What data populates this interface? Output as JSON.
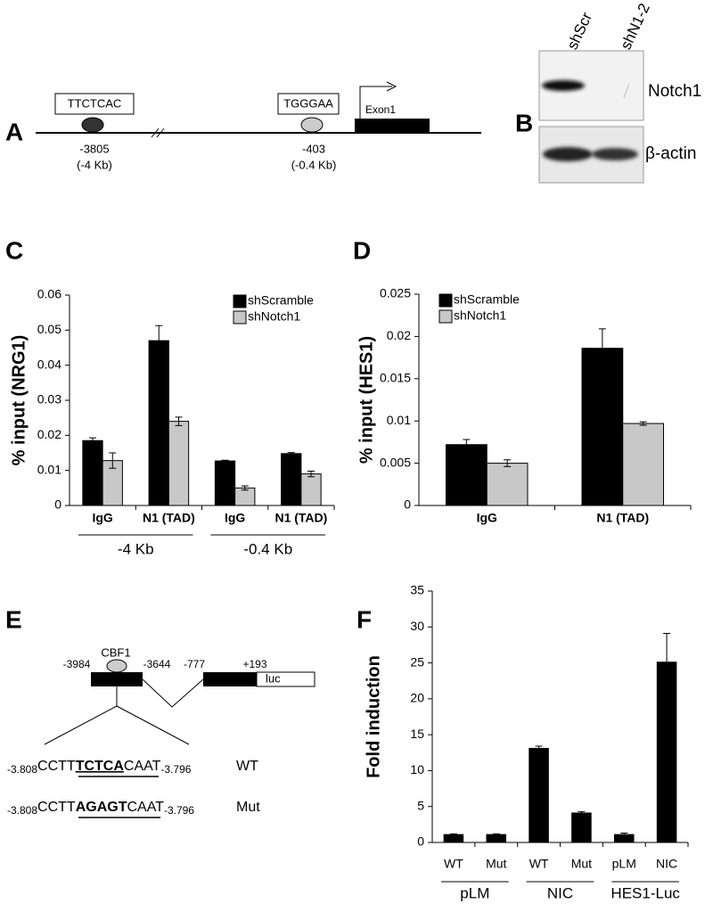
{
  "panel_labels": [
    "A",
    "B",
    "C",
    "D",
    "E",
    "F"
  ],
  "diagram_a": {
    "sites": [
      {
        "sequence": "TTCTCAC",
        "position": "-3805",
        "distance": "(-4 Kb)"
      },
      {
        "sequence": "TGGGAA",
        "position": "-403",
        "distance": "(-0.4 Kb)"
      }
    ],
    "exon": "Exon1"
  },
  "blot_b": {
    "lanes": [
      "shScr",
      "shN1-2"
    ],
    "proteins": [
      "Notch1",
      "β-actin"
    ]
  },
  "chart_data": [
    {
      "type": "bar",
      "ylabel": "% input (NRG1)",
      "categories": [
        "IgG",
        "N1 (TAD)",
        "IgG",
        "N1 (TAD)"
      ],
      "group_labels": [
        "-4 Kb",
        "-0.4 Kb"
      ],
      "series": [
        {
          "name": "shScramble",
          "color": "#000000",
          "values": [
            0.0185,
            0.047,
            0.0127,
            0.0148
          ],
          "errors": [
            0.0008,
            0.0043,
            0.0002,
            0.0003
          ]
        },
        {
          "name": "shNotch1",
          "color": "#c8c8c8",
          "values": [
            0.0128,
            0.024,
            0.005,
            0.009
          ],
          "errors": [
            0.0022,
            0.0012,
            0.0006,
            0.0008
          ]
        }
      ],
      "ylim": [
        0,
        0.06
      ],
      "yticks": [
        0,
        0.01,
        0.02,
        0.03,
        0.04,
        0.05,
        0.06
      ],
      "legend": "upper right"
    },
    {
      "type": "bar",
      "ylabel": "% input (HES1)",
      "categories": [
        "IgG",
        "N1 (TAD)"
      ],
      "series": [
        {
          "name": "shScramble",
          "color": "#000000",
          "values": [
            0.0072,
            0.0186
          ],
          "errors": [
            0.0006,
            0.0023
          ]
        },
        {
          "name": "shNotch1",
          "color": "#c8c8c8",
          "values": [
            0.005,
            0.0097
          ],
          "errors": [
            0.0004,
            0.0002
          ]
        }
      ],
      "ylim": [
        0,
        0.025
      ],
      "yticks": [
        0,
        0.005,
        0.01,
        0.015,
        0.02,
        0.025
      ],
      "legend": "upper left"
    },
    {
      "type": "bar",
      "ylabel": "Fold induction",
      "categories": [
        "WT",
        "Mut",
        "WT",
        "Mut",
        "pLM",
        "NIC"
      ],
      "group_labels": [
        "pLM",
        "NIC",
        "HES1-Luc"
      ],
      "series": [
        {
          "color": "#000000",
          "values": [
            1.1,
            1.1,
            13.1,
            4.1,
            1.1,
            25.1
          ],
          "errors": [
            0.1,
            0.1,
            0.3,
            0.2,
            0.2,
            4.0
          ]
        }
      ],
      "ylim": [
        0,
        35
      ],
      "yticks": [
        0,
        5,
        10,
        15,
        20,
        25,
        30,
        35
      ]
    }
  ],
  "diagram_e": {
    "factor": "CBF1",
    "positions": [
      "-3984",
      "-3644",
      "-777",
      "+193"
    ],
    "reporter": "luc",
    "sequences": [
      {
        "start": "-3.808",
        "prefix": "CCTT",
        "motif": "TCTCA",
        "suffix": "CAAT",
        "end": "-3.796",
        "label": "WT"
      },
      {
        "start": "-3.808",
        "prefix": "CCTT",
        "motif": "AGAGT",
        "suffix": "CAAT",
        "end": "-3.796",
        "label": "Mut"
      }
    ]
  }
}
